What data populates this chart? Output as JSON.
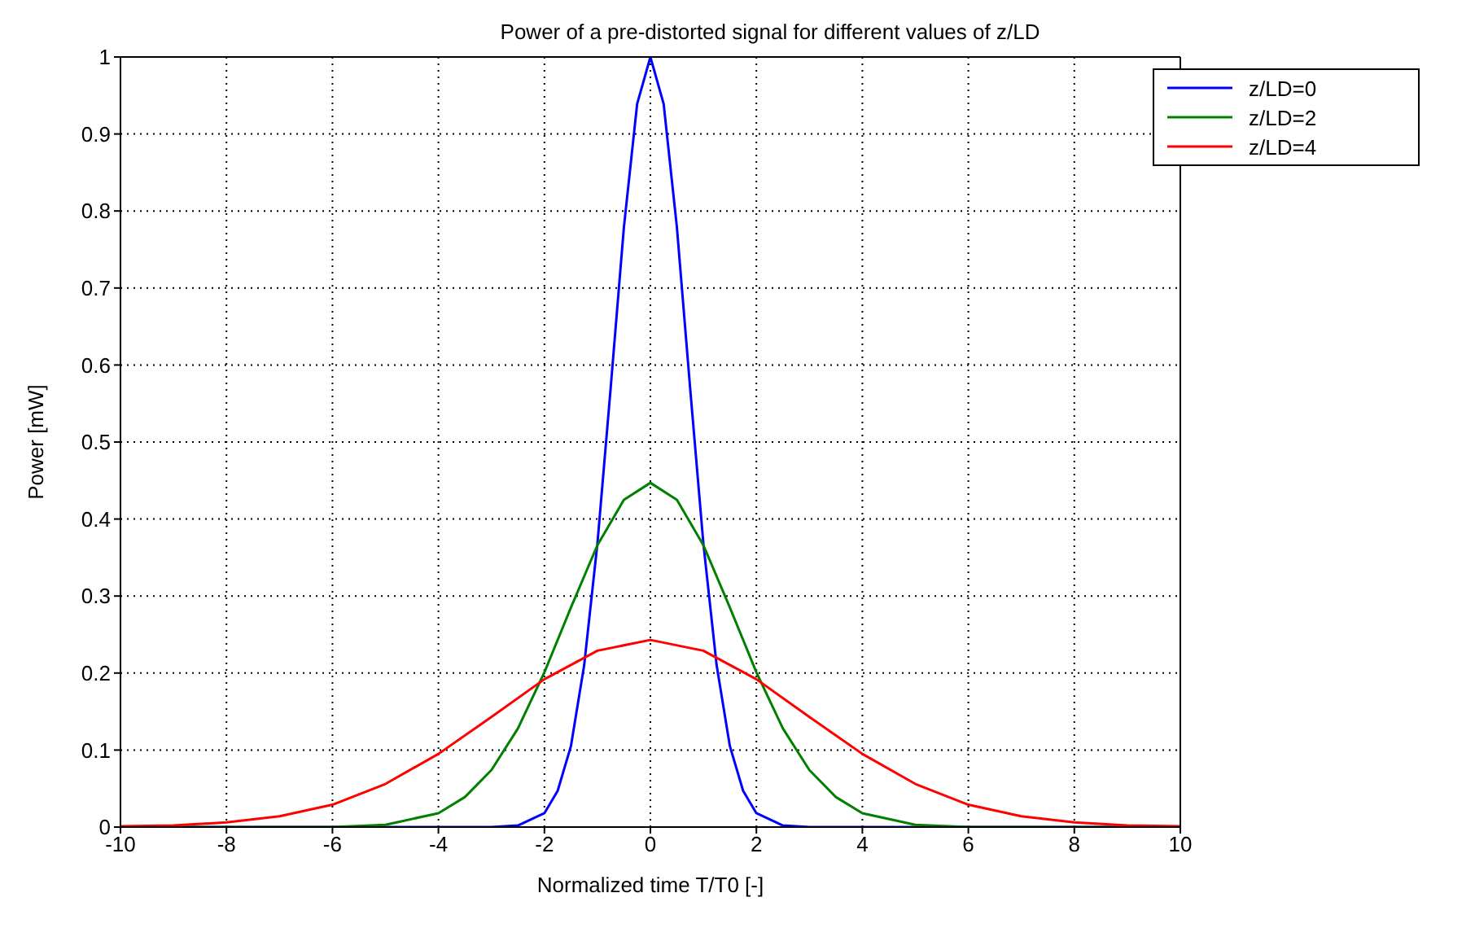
{
  "chart_data": {
    "type": "line",
    "title": "Power of a pre-distorted signal for different values of z/LD",
    "xlabel": "Normalized time T/T0 [-]",
    "ylabel": "Power [mW]",
    "xlim": [
      -10,
      10
    ],
    "ylim": [
      0,
      1
    ],
    "xticks": [
      -10,
      -8,
      -6,
      -4,
      -2,
      0,
      2,
      4,
      6,
      8,
      10
    ],
    "yticks": [
      0,
      0.1,
      0.2,
      0.3,
      0.4,
      0.5,
      0.6,
      0.7,
      0.8,
      0.9,
      1
    ],
    "grid": true,
    "legend": "top right",
    "marker": "none",
    "line_style": "solid",
    "series": [
      {
        "name": "z/LD=0",
        "color": "#0000ff",
        "x": [
          -10,
          -3,
          -2.5,
          -2,
          -1.75,
          -1.5,
          -1.25,
          -1,
          -0.75,
          -0.5,
          -0.25,
          0,
          0.25,
          0.5,
          0.75,
          1,
          1.25,
          1.5,
          1.75,
          2,
          2.5,
          3,
          10
        ],
        "values": [
          0,
          0,
          0.002,
          0.018,
          0.047,
          0.105,
          0.21,
          0.368,
          0.57,
          0.779,
          0.939,
          1,
          0.939,
          0.779,
          0.57,
          0.368,
          0.21,
          0.105,
          0.047,
          0.018,
          0.002,
          0,
          0
        ]
      },
      {
        "name": "z/LD=2",
        "color": "#008000",
        "x": [
          -10,
          -6,
          -5,
          -4,
          -3.5,
          -3,
          -2.5,
          -2,
          -1.5,
          -1,
          -0.5,
          0,
          0.5,
          1,
          1.5,
          2,
          2.5,
          3,
          3.5,
          4,
          5,
          6,
          10
        ],
        "values": [
          0,
          0,
          0.003,
          0.018,
          0.039,
          0.074,
          0.128,
          0.201,
          0.285,
          0.366,
          0.425,
          0.447,
          0.425,
          0.366,
          0.285,
          0.201,
          0.128,
          0.074,
          0.039,
          0.018,
          0.003,
          0,
          0
        ]
      },
      {
        "name": "z/LD=4",
        "color": "#ff0000",
        "x": [
          -10,
          -9,
          -8,
          -7,
          -6,
          -5,
          -4,
          -3,
          -2,
          -1,
          0,
          1,
          2,
          3,
          4,
          5,
          6,
          7,
          8,
          9,
          10
        ],
        "values": [
          0.001,
          0.002,
          0.006,
          0.014,
          0.029,
          0.056,
          0.095,
          0.143,
          0.192,
          0.229,
          0.243,
          0.229,
          0.192,
          0.143,
          0.095,
          0.056,
          0.029,
          0.014,
          0.006,
          0.002,
          0.001
        ]
      }
    ]
  }
}
